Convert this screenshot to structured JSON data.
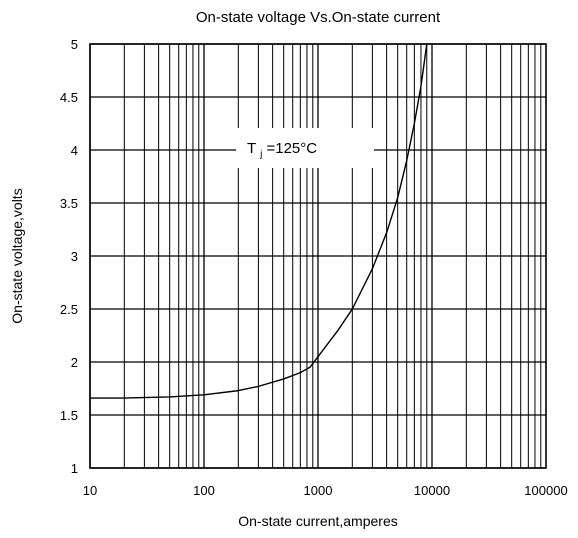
{
  "chart_data": {
    "type": "line",
    "title": "On-state voltage Vs.On-state current",
    "xlabel": "On-state current,amperes",
    "ylabel": "On-state voltage,volts",
    "x_scale": "log",
    "xlim": [
      10,
      100000
    ],
    "ylim": [
      1,
      5
    ],
    "x_ticks": [
      10,
      100,
      1000,
      10000,
      100000
    ],
    "x_tick_labels": [
      "10",
      "100",
      "1000",
      "10000",
      "100000"
    ],
    "y_ticks": [
      1,
      1.5,
      2,
      2.5,
      3,
      3.5,
      4,
      4.5,
      5
    ],
    "y_tick_labels": [
      "1",
      "1.5",
      "2",
      "2.5",
      "3",
      "3.5",
      "4",
      "4.5",
      "5"
    ],
    "grid": true,
    "annotation": {
      "text_main": "T",
      "text_sub": "j",
      "text_rest": "=125°C"
    },
    "series": [
      {
        "x": [
          10,
          20,
          50,
          100,
          200,
          300,
          500,
          700,
          850,
          1000,
          1500,
          2000,
          3000,
          4000,
          5000,
          6000,
          7000,
          8000,
          9000
        ],
        "y": [
          1.66,
          1.66,
          1.67,
          1.69,
          1.73,
          1.77,
          1.84,
          1.9,
          1.95,
          2.05,
          2.3,
          2.5,
          2.88,
          3.22,
          3.55,
          3.9,
          4.25,
          4.6,
          5.0
        ]
      }
    ]
  }
}
